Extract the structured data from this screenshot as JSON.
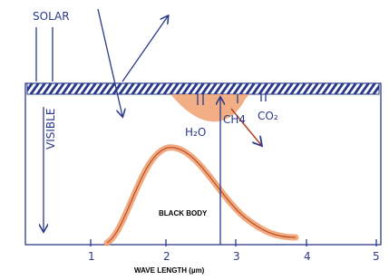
{
  "labels": {
    "solar": "SOLAR",
    "visible": "VISIBLE",
    "h2o": "H₂O",
    "ch4": "CH4",
    "co2": "CO₂",
    "black_body": "BLACK BODY"
  },
  "axis": {
    "title": "WAVE LENGTH (µm)",
    "ticks": [
      "1",
      "2",
      "3",
      "4",
      "5"
    ]
  }
}
